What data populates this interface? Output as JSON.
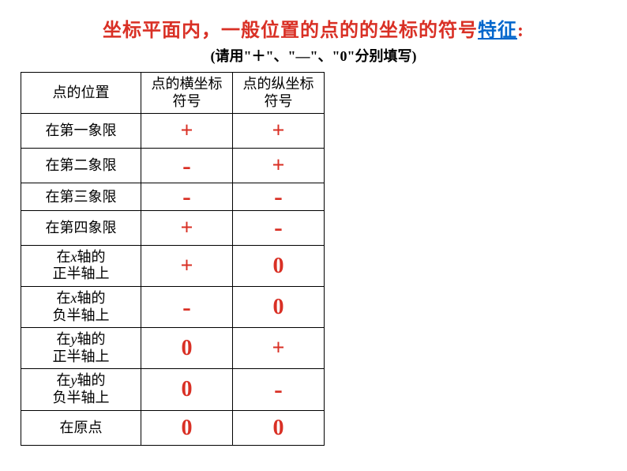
{
  "title_prefix": "坐标平面内，一般位置的点的的坐标的符号",
  "title_emphasis": "特征",
  "title_suffix": ":",
  "subtitle": "(请用\"＋\"、\"—\"、\"0\"分别填写)",
  "header": {
    "col1": "点的位置",
    "col2_line1": "点的横坐标",
    "col2_line2": "符号",
    "col3_line1": "点的纵坐标",
    "col3_line2": "符号"
  },
  "rows": [
    {
      "position": "在第一象限",
      "x": "+",
      "y": "+"
    },
    {
      "position": "在第二象限",
      "x": "-",
      "y": "+"
    },
    {
      "position": "在第三象限",
      "x": "-",
      "y": "-"
    },
    {
      "position": "在第四象限",
      "x": "+",
      "y": "-"
    }
  ],
  "axis_rows": [
    {
      "l1": "在x轴的",
      "l2": "正半轴上",
      "x": "+",
      "y": "0"
    },
    {
      "l1": "在x轴的",
      "l2": "负半轴上",
      "x": "-",
      "y": "0"
    },
    {
      "l1": "在y轴的",
      "l2": "正半轴上",
      "x": "0",
      "y": "+"
    },
    {
      "l1": "在y轴的",
      "l2": "负半轴上",
      "x": "0",
      "y": "-"
    }
  ],
  "origin_row": {
    "position": "在原点",
    "x": "0",
    "y": "0"
  },
  "colors": {
    "title_red": "#d93025",
    "title_blue": "#0066cc",
    "sign_red": "#d93025",
    "border": "#000000",
    "background": "#ffffff"
  },
  "table": {
    "col1_width": 152,
    "col2_width": 116,
    "col3_width": 116,
    "border_width": 1.5
  },
  "fonts": {
    "title_size": 24,
    "subtitle_size": 18,
    "cell_size": 18,
    "sign_size": 28
  }
}
